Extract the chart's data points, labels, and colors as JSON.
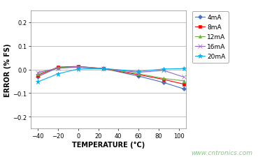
{
  "xlabel": "TEMPERATURE (°C)",
  "ylabel": "ERROR (% FS)",
  "watermark": "www.cntronics.com",
  "xlim": [
    -47,
    107
  ],
  "ylim": [
    -0.25,
    0.25
  ],
  "xticks": [
    -40,
    -20,
    0,
    20,
    40,
    60,
    80,
    100
  ],
  "yticks": [
    -0.2,
    -0.1,
    0.0,
    0.1,
    0.2
  ],
  "series": [
    {
      "label": "4mA",
      "color": "#4472C4",
      "marker": "D",
      "markersize": 3,
      "x": [
        -40,
        -20,
        0,
        25,
        60,
        85,
        105
      ],
      "y": [
        -0.03,
        0.008,
        0.01,
        0.004,
        -0.028,
        -0.055,
        -0.082
      ]
    },
    {
      "label": "8mA",
      "color": "#FF0000",
      "marker": "s",
      "markersize": 3,
      "x": [
        -40,
        -20,
        0,
        25,
        60,
        85,
        105
      ],
      "y": [
        -0.024,
        0.01,
        0.013,
        0.004,
        -0.022,
        -0.042,
        -0.062
      ]
    },
    {
      "label": "12mA",
      "color": "#70AD47",
      "marker": "^",
      "markersize": 3,
      "x": [
        -40,
        -20,
        0,
        25,
        60,
        85,
        105
      ],
      "y": [
        -0.018,
        0.007,
        0.012,
        0.004,
        -0.018,
        -0.038,
        -0.048
      ]
    },
    {
      "label": "16mA",
      "color": "#9966CC",
      "marker": "x",
      "markersize": 4,
      "x": [
        -40,
        -20,
        0,
        25,
        60,
        85,
        105
      ],
      "y": [
        -0.012,
        0.005,
        0.01,
        0.004,
        -0.012,
        -0.004,
        -0.032
      ]
    },
    {
      "label": "20mA",
      "color": "#00B0F0",
      "marker": "*",
      "markersize": 5,
      "x": [
        -40,
        -20,
        0,
        25,
        60,
        85,
        105
      ],
      "y": [
        -0.052,
        -0.018,
        0.002,
        0.004,
        -0.008,
        0.002,
        0.004
      ]
    }
  ],
  "background_color": "#FFFFFF",
  "plot_bg_color": "#FFFFFF",
  "grid_color": "#AAAAAA",
  "watermark_color": "#7FCC7F",
  "legend_fontsize": 6.5,
  "axis_label_fontsize": 7,
  "tick_fontsize": 6
}
